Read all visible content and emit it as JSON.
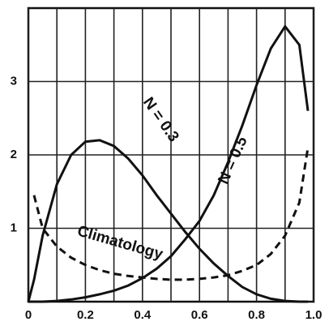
{
  "chart_data": {
    "type": "line",
    "x": [
      0,
      0.02,
      0.05,
      0.1,
      0.15,
      0.2,
      0.25,
      0.3,
      0.35,
      0.4,
      0.45,
      0.5,
      0.55,
      0.6,
      0.65,
      0.7,
      0.75,
      0.8,
      0.85,
      0.9,
      0.95,
      0.98
    ],
    "series": [
      {
        "name": "N = 0.3",
        "color": "#111111",
        "style": "solid",
        "values": [
          0,
          0.3,
          0.9,
          1.6,
          2.0,
          2.18,
          2.2,
          2.12,
          1.95,
          1.72,
          1.45,
          1.2,
          0.95,
          0.72,
          0.52,
          0.35,
          0.2,
          0.1,
          0.04,
          0.01,
          0,
          0
        ]
      },
      {
        "name": "N = 0.5",
        "color": "#111111",
        "style": "solid",
        "values": [
          0,
          0,
          0,
          0.01,
          0.03,
          0.06,
          0.1,
          0.15,
          0.22,
          0.32,
          0.45,
          0.62,
          0.85,
          1.1,
          1.45,
          1.9,
          2.4,
          2.95,
          3.45,
          3.75,
          3.5,
          2.6
        ]
      },
      {
        "name": "Climatology",
        "color": "#111111",
        "style": "dashed",
        "values": [
          null,
          1.45,
          1.0,
          0.75,
          0.6,
          0.5,
          0.43,
          0.38,
          0.35,
          0.33,
          0.31,
          0.3,
          0.3,
          0.31,
          0.33,
          0.36,
          0.42,
          0.5,
          0.65,
          0.9,
          1.35,
          2.1
        ]
      }
    ],
    "xlim": [
      0,
      1
    ],
    "ylim": [
      0,
      4
    ],
    "xticks": [
      0,
      0.2,
      0.4,
      0.6,
      0.8,
      {
        "value": 1,
        "label": "1.0"
      }
    ],
    "xgrid_minor": [
      0.1,
      0.3,
      0.5,
      0.7,
      0.9
    ],
    "yticks": [
      1,
      2,
      3
    ],
    "grid": true
  }
}
